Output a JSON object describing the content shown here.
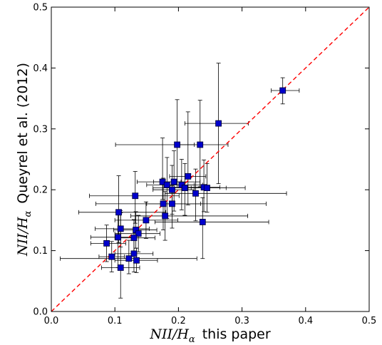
{
  "chart_data": {
    "type": "scatter",
    "title": "",
    "xlabel": {
      "math": "NII/H",
      "sub": "α",
      "text": "this paper"
    },
    "ylabel": {
      "math": "NII/H",
      "sub": "α",
      "text": "Queyrel et al. (2012)"
    },
    "xlim": [
      0.0,
      0.5
    ],
    "ylim": [
      0.0,
      0.5
    ],
    "xticks": [
      "0.0",
      "0.1",
      "0.2",
      "0.3",
      "0.4",
      "0.5"
    ],
    "yticks": [
      "0.0",
      "0.1",
      "0.2",
      "0.3",
      "0.4",
      "0.5"
    ],
    "grid": false,
    "reference_line": {
      "style": "dashed",
      "color": "#ff0000",
      "from": [
        0.0,
        0.0
      ],
      "to": [
        0.5,
        0.5
      ]
    },
    "marker_color": "#0000cc",
    "marker_edge": "#000033",
    "errorbar_color": "#000000",
    "points": [
      {
        "x": 0.364,
        "y": 0.363,
        "xerr": [
          0.018,
          0.026
        ],
        "yerr": [
          0.022,
          0.021
        ]
      },
      {
        "x": 0.263,
        "y": 0.309,
        "xerr": [
          0.053,
          0.047
        ],
        "yerr": [
          0.099,
          0.099
        ]
      },
      {
        "x": 0.198,
        "y": 0.274,
        "xerr": [
          0.097,
          0.027
        ],
        "yerr": [
          0.07,
          0.074
        ]
      },
      {
        "x": 0.234,
        "y": 0.274,
        "xerr": [
          0.036,
          0.044
        ],
        "yerr": [
          0.069,
          0.073
        ]
      },
      {
        "x": 0.215,
        "y": 0.222,
        "xerr": [
          0.029,
          0.028
        ],
        "yerr": [
          0.047,
          0.106
        ]
      },
      {
        "x": 0.175,
        "y": 0.213,
        "xerr": [
          0.04,
          0.029
        ],
        "yerr": [
          0.029,
          0.072
        ]
      },
      {
        "x": 0.193,
        "y": 0.213,
        "xerr": [
          0.032,
          0.041
        ],
        "yerr": [
          0.048,
          0.051
        ]
      },
      {
        "x": 0.182,
        "y": 0.208,
        "xerr": [
          0.032,
          0.043
        ],
        "yerr": [
          0.055,
          0.045
        ]
      },
      {
        "x": 0.205,
        "y": 0.208,
        "xerr": [
          0.025,
          0.033
        ],
        "yerr": [
          0.041,
          0.042
        ]
      },
      {
        "x": 0.19,
        "y": 0.2,
        "xerr": [
          0.03,
          0.035
        ],
        "yerr": [
          0.04,
          0.04
        ]
      },
      {
        "x": 0.21,
        "y": 0.203,
        "xerr": [
          0.05,
          0.095
        ],
        "yerr": [
          0.045,
          0.04
        ]
      },
      {
        "x": 0.24,
        "y": 0.204,
        "xerr": [
          0.025,
          0.025
        ],
        "yerr": [
          0.04,
          0.045
        ]
      },
      {
        "x": 0.245,
        "y": 0.203,
        "xerr": [
          0.025,
          0.03
        ],
        "yerr": [
          0.04,
          0.04
        ]
      },
      {
        "x": 0.227,
        "y": 0.194,
        "xerr": [
          0.048,
          0.143
        ],
        "yerr": [
          0.045,
          0.04
        ]
      },
      {
        "x": 0.132,
        "y": 0.19,
        "xerr": [
          0.072,
          0.069
        ],
        "yerr": [
          0.045,
          0.04
        ]
      },
      {
        "x": 0.176,
        "y": 0.177,
        "xerr": [
          0.106,
          0.162
        ],
        "yerr": [
          0.043,
          0.042
        ]
      },
      {
        "x": 0.19,
        "y": 0.177,
        "xerr": [
          0.04,
          0.045
        ],
        "yerr": [
          0.04,
          0.03
        ]
      },
      {
        "x": 0.106,
        "y": 0.163,
        "xerr": [
          0.063,
          0.074
        ],
        "yerr": [
          0.05,
          0.06
        ]
      },
      {
        "x": 0.179,
        "y": 0.157,
        "xerr": [
          0.054,
          0.13
        ],
        "yerr": [
          0.04,
          0.04
        ]
      },
      {
        "x": 0.149,
        "y": 0.15,
        "xerr": [
          0.049,
          0.05
        ],
        "yerr": [
          0.03,
          0.03
        ]
      },
      {
        "x": 0.238,
        "y": 0.147,
        "xerr": [
          0.075,
          0.104
        ],
        "yerr": [
          0.06,
          0.04
        ]
      },
      {
        "x": 0.109,
        "y": 0.136,
        "xerr": [
          0.04,
          0.045
        ],
        "yerr": [
          0.03,
          0.03
        ]
      },
      {
        "x": 0.133,
        "y": 0.134,
        "xerr": [
          0.035,
          0.033
        ],
        "yerr": [
          0.03,
          0.03
        ]
      },
      {
        "x": 0.137,
        "y": 0.128,
        "xerr": [
          0.037,
          0.034
        ],
        "yerr": [
          0.03,
          0.03
        ]
      },
      {
        "x": 0.105,
        "y": 0.122,
        "xerr": [
          0.043,
          0.029
        ],
        "yerr": [
          0.05,
          0.04
        ]
      },
      {
        "x": 0.13,
        "y": 0.121,
        "xerr": [
          0.03,
          0.033
        ],
        "yerr": [
          0.03,
          0.03
        ]
      },
      {
        "x": 0.087,
        "y": 0.112,
        "xerr": [
          0.025,
          0.03
        ],
        "yerr": [
          0.03,
          0.03
        ]
      },
      {
        "x": 0.13,
        "y": 0.095,
        "xerr": [
          0.03,
          0.03
        ],
        "yerr": [
          0.03,
          0.03
        ]
      },
      {
        "x": 0.095,
        "y": 0.09,
        "xerr": [
          0.02,
          0.02
        ],
        "yerr": [
          0.025,
          0.025
        ]
      },
      {
        "x": 0.122,
        "y": 0.087,
        "xerr": [
          0.108,
          0.107
        ],
        "yerr": [
          0.025,
          0.03
        ]
      },
      {
        "x": 0.134,
        "y": 0.084,
        "xerr": [
          0.034,
          0.033
        ],
        "yerr": [
          0.02,
          0.02
        ]
      },
      {
        "x": 0.109,
        "y": 0.072,
        "xerr": [
          0.03,
          0.03
        ],
        "yerr": [
          0.05,
          0.09
        ]
      }
    ]
  }
}
